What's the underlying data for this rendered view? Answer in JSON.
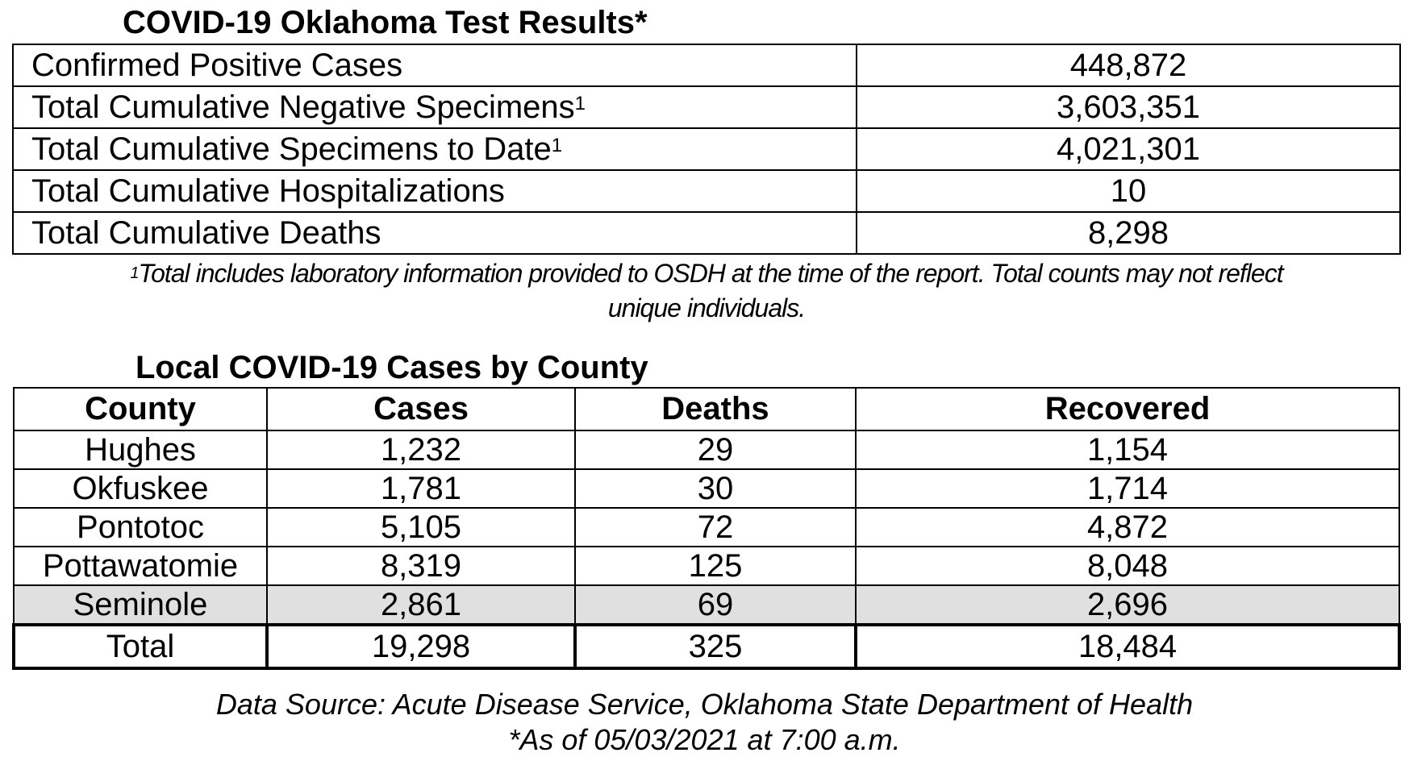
{
  "test_results": {
    "title": "COVID-19 Oklahoma Test Results*",
    "rows": [
      {
        "label": "Confirmed Positive Cases",
        "sup": "",
        "value": "448,872"
      },
      {
        "label": "Total Cumulative Negative Specimens",
        "sup": "1",
        "value": "3,603,351"
      },
      {
        "label": "Total Cumulative Specimens to Date",
        "sup": "1",
        "value": "4,021,301"
      },
      {
        "label": "Total Cumulative Hospitalizations",
        "sup": "",
        "value": "10"
      },
      {
        "label": "Total Cumulative Deaths",
        "sup": "",
        "value": "8,298"
      }
    ],
    "footnote_marker": "1",
    "footnote_line1": "Total includes laboratory information provided to OSDH at the time of the report. Total counts may not reflect",
    "footnote_line2": "unique individuals."
  },
  "county_cases": {
    "title": "Local COVID-19 Cases by County",
    "headers": [
      "County",
      "Cases",
      "Deaths",
      "Recovered"
    ],
    "rows": [
      [
        "Hughes",
        "1,232",
        "29",
        "1,154"
      ],
      [
        "Okfuskee",
        "1,781",
        "30",
        "1,714"
      ],
      [
        "Pontotoc",
        "5,105",
        "72",
        "4,872"
      ],
      [
        "Pottawatomie",
        "8,319",
        "125",
        "8,048"
      ],
      [
        "Seminole",
        "2,861",
        "69",
        "2,696"
      ]
    ],
    "total": [
      "Total",
      "19,298",
      "325",
      "18,484"
    ],
    "shaded_row_color": "#e0e0e0"
  },
  "source": {
    "line1": "Data Source: Acute Disease Service, Oklahoma State Department of Health",
    "line2": "*As of 05/03/2021 at 7:00 a.m."
  }
}
